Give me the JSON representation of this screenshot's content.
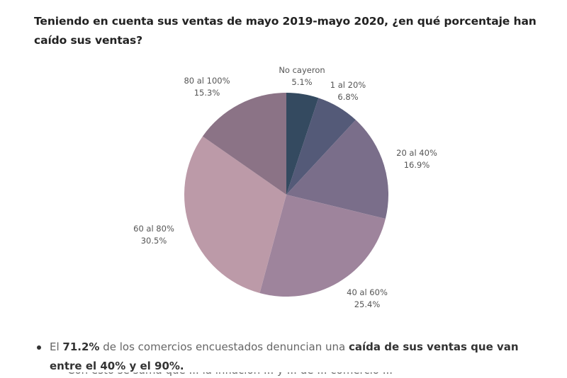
{
  "title": "Teniendo en cuenta sus ventas de mayo 2019-mayo 2020, ¿en qué porcentaje han caído sus ventas?",
  "chart_data": {
    "type": "pie",
    "title": "Teniendo en cuenta sus ventas de mayo 2019-mayo 2020, ¿en qué porcentaje han caído sus ventas?",
    "start": "top",
    "direction": "clockwise",
    "slices": [
      {
        "label": "No cayeron",
        "value": 5.1,
        "value_label": "5.1%",
        "color": "#344a60"
      },
      {
        "label": "1 al 20%",
        "value": 6.8,
        "value_label": "6.8%",
        "color": "#545a78"
      },
      {
        "label": "20 al 40%",
        "value": 16.9,
        "value_label": "16.9%",
        "color": "#7a6e8a"
      },
      {
        "label": "40 al 60%",
        "value": 25.4,
        "value_label": "25.4%",
        "color": "#9e849c"
      },
      {
        "label": "60 al 80%",
        "value": 30.5,
        "value_label": "30.5%",
        "color": "#bc9aa8"
      },
      {
        "label": "80 al 100%",
        "value": 15.3,
        "value_label": "15.3%",
        "color": "#8b7386"
      }
    ],
    "legend": "none",
    "data_labels": "outside"
  },
  "bullets": [
    {
      "pre": "El ",
      "bold1": "71.2%",
      "mid": " de los comercios encuestados denuncian una ",
      "bold2": "caída de sus ventas que van entre el 40% y el 90%."
    }
  ],
  "cut_off_line": "Con esto se suma que ... la inflación ... y ... de ... comercio ..."
}
